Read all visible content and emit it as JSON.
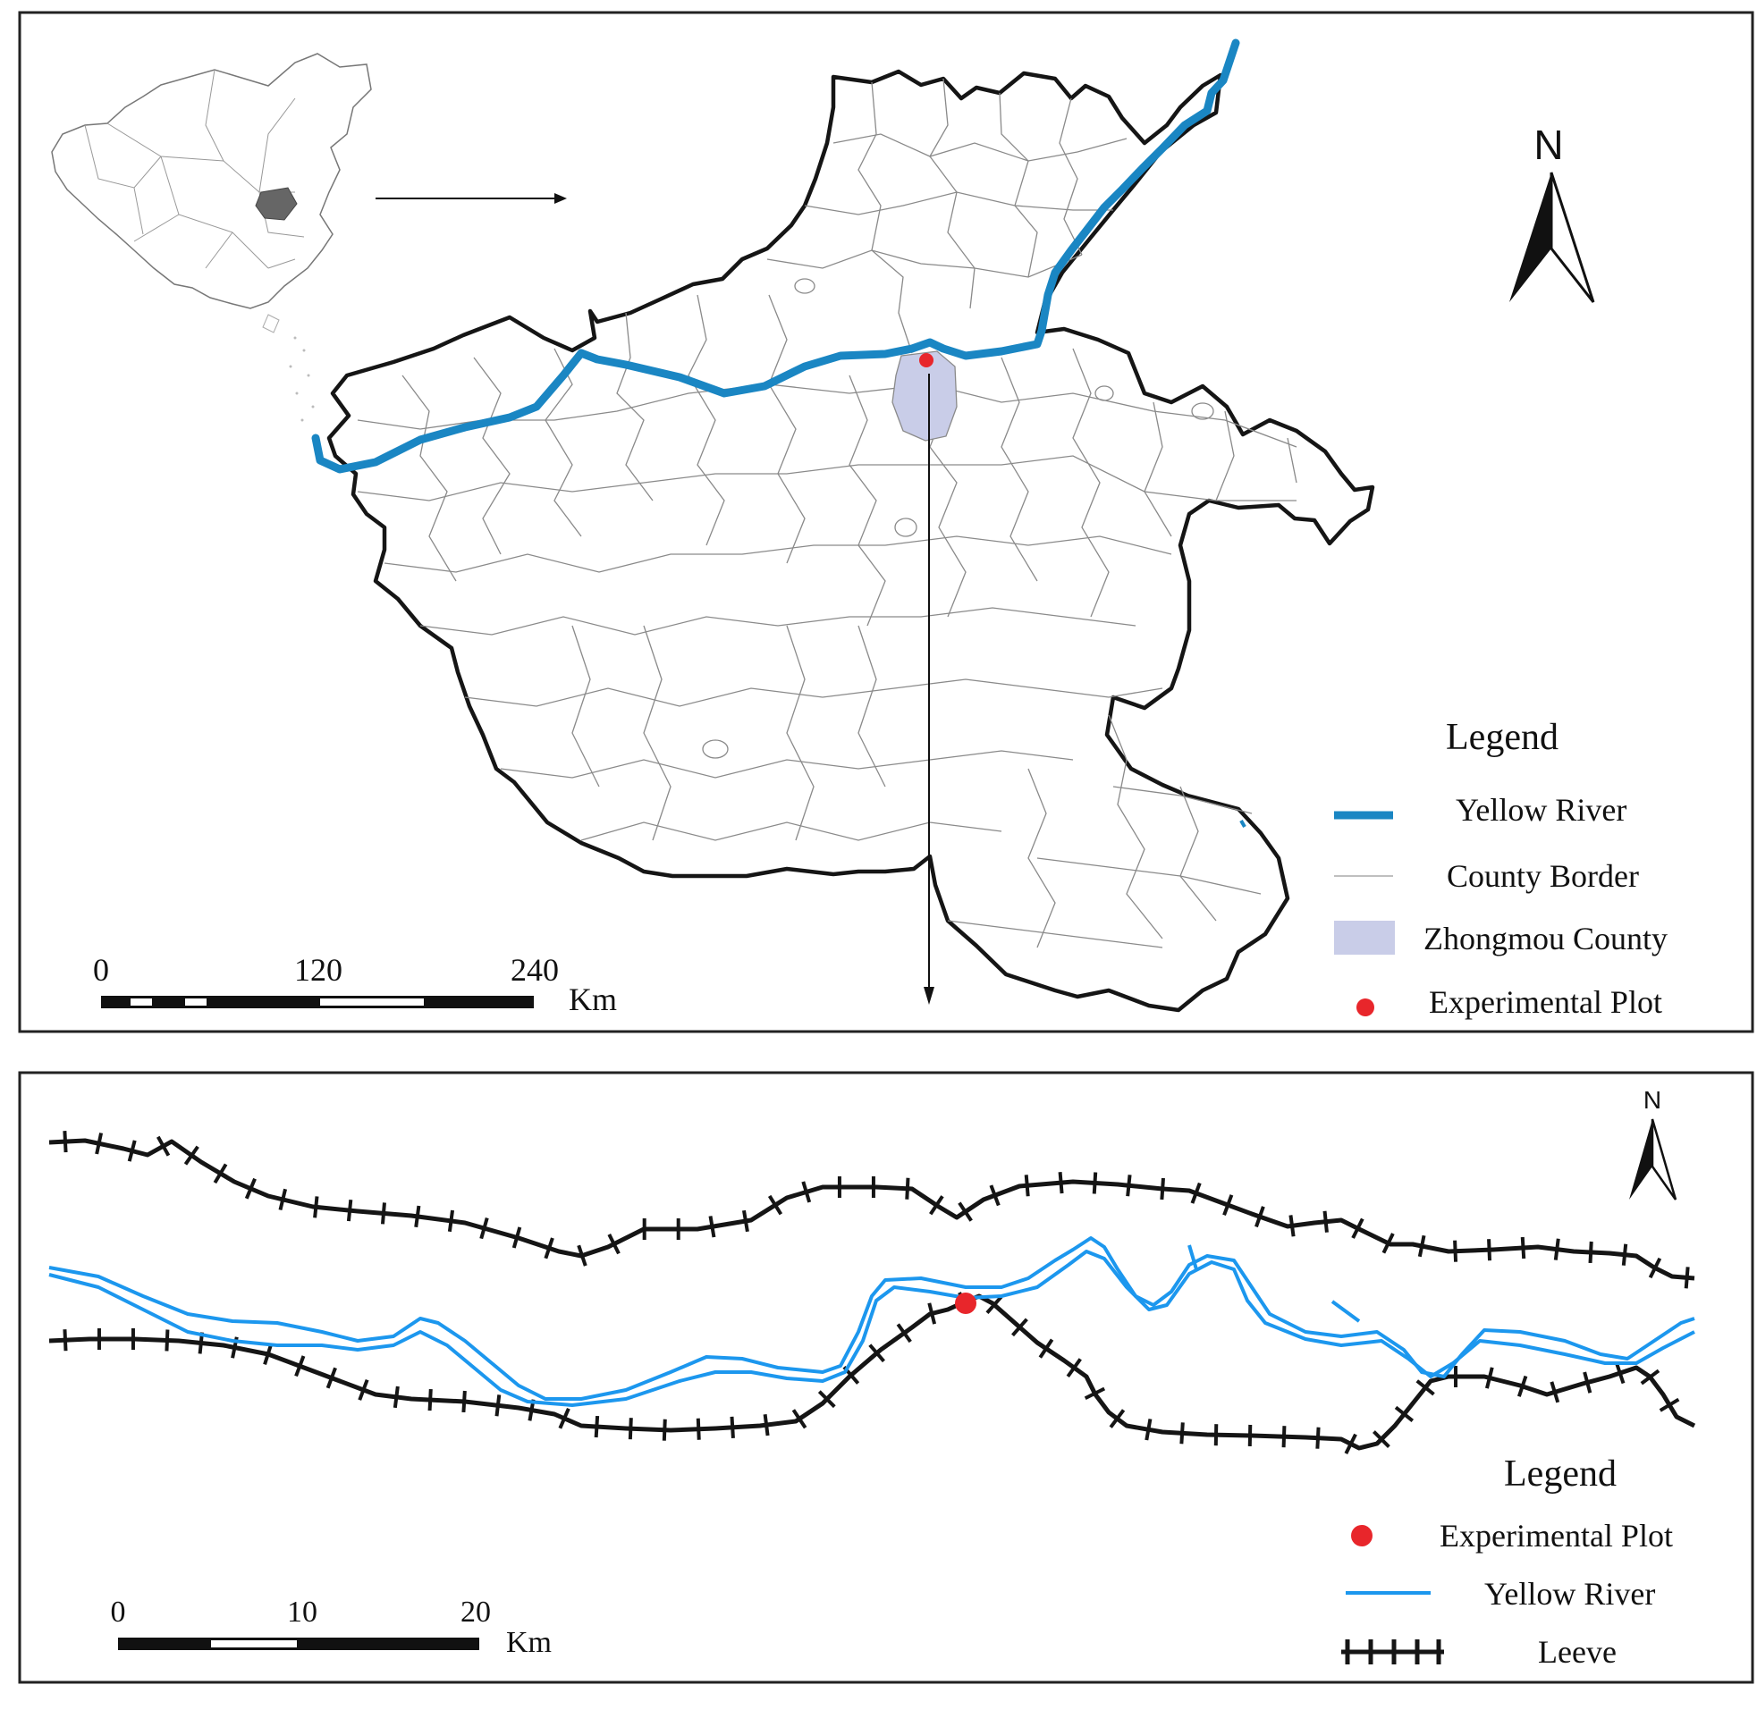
{
  "top_panel": {
    "north_label": "N",
    "legend": {
      "title": "Legend",
      "items": [
        {
          "label": "Yellow River",
          "symbol": "thick-blue-line"
        },
        {
          "label": "County Border",
          "symbol": "thin-gray-line"
        },
        {
          "label": "Zhongmou County",
          "symbol": "lavender-box"
        },
        {
          "label": "Experimental Plot",
          "symbol": "red-dot"
        }
      ]
    },
    "scale_bar": {
      "ticks": [
        "0",
        "120",
        "240"
      ],
      "unit": "Km"
    }
  },
  "bottom_panel": {
    "north_label": "N",
    "legend": {
      "title": "Legend",
      "items": [
        {
          "label": "Experimental Plot",
          "symbol": "red-dot"
        },
        {
          "label": "Yellow River",
          "symbol": "blue-line"
        },
        {
          "label": "Leeve",
          "symbol": "hatched-black-line"
        }
      ]
    },
    "scale_bar": {
      "ticks": [
        "0",
        "10",
        "20"
      ],
      "unit": "Km"
    }
  },
  "colors": {
    "river_top": "#1a86c3",
    "river_bottom": "#1c97ee",
    "province_border": "#111111",
    "county_border": "#8a8a8a",
    "zhongmou_fill": "#c9cde8",
    "plot_dot": "#e8262b",
    "henan_inset_fill": "#666666"
  }
}
